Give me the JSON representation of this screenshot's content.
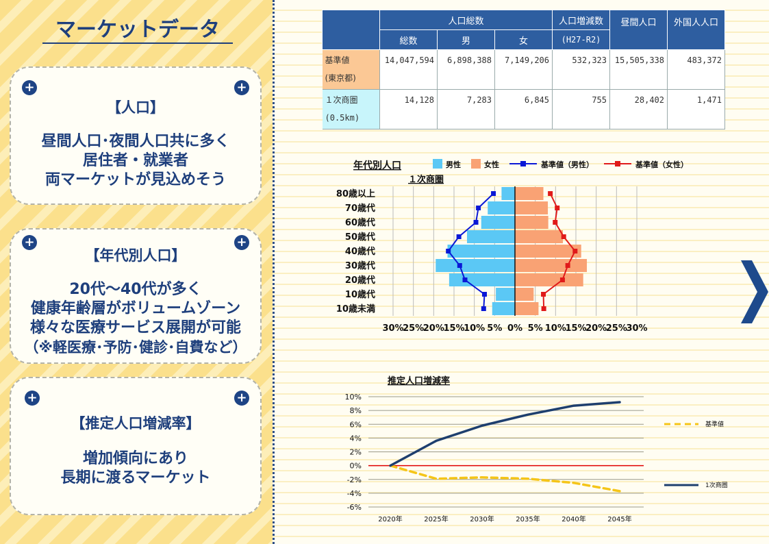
{
  "page": {
    "title": "マーケットデータ"
  },
  "cards": [
    {
      "head": "【人口】",
      "lines": [
        "昼間人口･夜間人口共に多く",
        "居住者・就業者",
        "両マーケットが見込めそう"
      ]
    },
    {
      "head": "【年代別人口】",
      "lines": [
        "20代～40代が多く",
        "健康年齢層がボリュームゾーン",
        "様々な医療サービス展開が可能",
        "（※軽医療･予防･健診･自費など）"
      ]
    },
    {
      "head": "【推定人口増減率】",
      "lines": [
        "増加傾向にあり",
        "長期に渡るマーケット"
      ]
    }
  ],
  "icons": {
    "plus": "plus-circle-icon",
    "next": "chevron-right-icon"
  },
  "colors": {
    "navy": "#1e3f7c",
    "male": "#5bc8f5",
    "female": "#f9a274",
    "male_line": "#0a18d6",
    "female_line": "#e01a1a",
    "base_dash": "#f5c518",
    "area_line": "#1e3f6e"
  },
  "table": {
    "header_group": "人口総数",
    "header_total": "総数",
    "header_male": "男",
    "header_female": "女",
    "header_change": "人口増減数",
    "header_change_sub": "(H27-R2)",
    "header_day": "昼間人口",
    "header_foreign": "外国人人口",
    "rows": [
      {
        "label1": "基準値",
        "label2": "(東京都)",
        "total": "14,047,594",
        "male": "6,898,388",
        "female": "7,149,206",
        "change": "532,323",
        "day": "15,505,338",
        "foreign": "483,372"
      },
      {
        "label1": "１次商圏",
        "label2": "(0.5km)",
        "total": "14,128",
        "male": "7,283",
        "female": "6,845",
        "change": "755",
        "day": "28,402",
        "foreign": "1,471"
      }
    ]
  },
  "chart_data": [
    {
      "type": "bar",
      "title": "年代別人口",
      "subtitle": "１次商圏",
      "orientation": "horizontal-pyramid",
      "categories": [
        "80歳以上",
        "70歳代",
        "60歳代",
        "50歳代",
        "40歳代",
        "30歳代",
        "20歳代",
        "10歳代",
        "10歳未満"
      ],
      "x_tick_labels": [
        "30%",
        "25%",
        "20%",
        "15%",
        "10%",
        "5%",
        "0%",
        "5%",
        "10%",
        "15%",
        "20%",
        "25%",
        "30%"
      ],
      "xlim": [
        -30,
        30
      ],
      "grid": true,
      "series": [
        {
          "name": "男性",
          "kind": "bar",
          "side": "left",
          "values": [
            3.3,
            6.7,
            8.3,
            11.8,
            16.6,
            19.5,
            16.2,
            4.7,
            5.6
          ]
        },
        {
          "name": "女性",
          "kind": "bar",
          "side": "right",
          "values": [
            7.0,
            8.1,
            8.2,
            11.8,
            16.3,
            17.7,
            16.8,
            4.6,
            5.8
          ]
        },
        {
          "name": "基準値（男性）",
          "kind": "line",
          "side": "left",
          "values": [
            5.3,
            9.0,
            9.6,
            13.8,
            16.4,
            13.6,
            12.3,
            7.5,
            7.7
          ]
        },
        {
          "name": "基準値（女性）",
          "kind": "line",
          "side": "right",
          "values": [
            8.7,
            10.4,
            9.9,
            12.0,
            14.8,
            13.0,
            11.7,
            7.0,
            7.1
          ]
        }
      ],
      "legend_position": "top"
    },
    {
      "type": "line",
      "title": "推定人口増減率",
      "x": [
        "2020年",
        "2025年",
        "2030年",
        "2035年",
        "2040年",
        "2045年"
      ],
      "y_tick_labels": [
        "10%",
        "8%",
        "6%",
        "4%",
        "2%",
        "0%",
        "-2%",
        "-4%",
        "-6%"
      ],
      "ylim": [
        -6,
        10
      ],
      "grid": true,
      "series": [
        {
          "name": "基準値",
          "style": "dashed",
          "values": [
            0,
            -1.9,
            -1.7,
            -1.9,
            -2.5,
            -3.7
          ]
        },
        {
          "name": "1次商圏",
          "style": "solid",
          "values": [
            0,
            3.6,
            5.8,
            7.4,
            8.7,
            9.2
          ]
        }
      ],
      "legend_position": "right"
    }
  ]
}
